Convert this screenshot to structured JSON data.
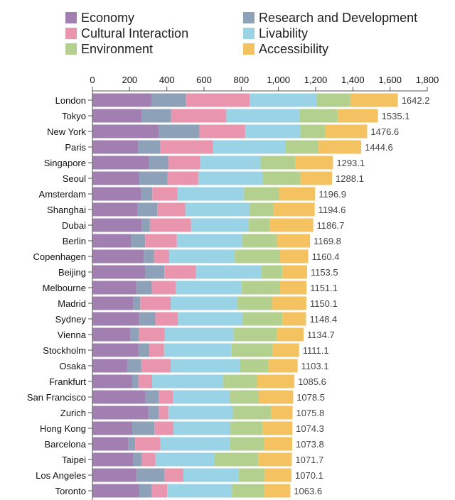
{
  "chart_data": {
    "type": "bar",
    "orientation": "horizontal",
    "stacked": true,
    "title": "",
    "xlabel": "",
    "ylabel": "",
    "xlim": [
      0,
      1800
    ],
    "xticks": [
      0,
      200,
      400,
      600,
      800,
      1000,
      1200,
      1400,
      1600,
      1800
    ],
    "xtick_labels": [
      "0",
      "200",
      "400",
      "600",
      "800",
      "1,000",
      "1,200",
      "1,400",
      "1,600",
      "1,800"
    ],
    "grid": false,
    "legend_position": "top",
    "categories": [
      "London",
      "Tokyo",
      "New York",
      "Paris",
      "Singapore",
      "Seoul",
      "Amsterdam",
      "Shanghai",
      "Dubai",
      "Berlin",
      "Copenhagen",
      "Beijing",
      "Melbourne",
      "Madrid",
      "Sydney",
      "Vienna",
      "Stockholm",
      "Osaka",
      "Frankfurt",
      "San Francisco",
      "Zurich",
      "Hong Kong",
      "Barcelona",
      "Taipei",
      "Los Angeles",
      "Toronto"
    ],
    "totals": [
      1642.2,
      1535.1,
      1476.6,
      1444.6,
      1293.1,
      1288.1,
      1196.9,
      1194.6,
      1186.7,
      1169.8,
      1160.4,
      1153.5,
      1151.1,
      1150.1,
      1148.4,
      1134.7,
      1111.1,
      1103.1,
      1085.6,
      1078.5,
      1075.8,
      1074.3,
      1073.8,
      1071.7,
      1070.1,
      1063.6
    ],
    "total_labels": [
      "1642.2",
      "1535.1",
      "1476.6",
      "1444.6",
      "1293.1",
      "1288.1",
      "1196.9",
      "1194.6",
      "1186.7",
      "1169.8",
      "1160.4",
      "1153.5",
      "1151.1",
      "1150.1",
      "1148.4",
      "1134.7",
      "1111.1",
      "1103.1",
      "1085.6",
      "1078.5",
      "1075.8",
      "1074.3",
      "1073.8",
      "1071.7",
      "1070.1",
      "1063.6"
    ],
    "series": [
      {
        "name": "Economy",
        "color": "#a27fb1",
        "values": [
          317,
          264,
          357,
          246,
          305,
          252,
          262,
          244,
          264,
          208,
          276,
          285,
          238,
          221,
          253,
          205,
          248,
          187,
          212,
          286,
          301,
          214,
          194,
          220,
          238,
          252
        ]
      },
      {
        "name": "Research and Development",
        "color": "#8da1b9",
        "values": [
          186,
          159,
          218,
          117,
          102,
          151,
          60,
          105,
          45,
          76,
          55,
          102,
          82,
          36,
          85,
          45,
          58,
          76,
          35,
          70,
          55,
          119,
          36,
          45,
          148,
          65
        ]
      },
      {
        "name": "Cultural Interaction",
        "color": "#e995ae",
        "values": [
          342,
          297,
          246,
          285,
          173,
          166,
          135,
          150,
          221,
          170,
          82,
          170,
          127,
          164,
          122,
          139,
          79,
          158,
          74,
          77,
          52,
          103,
          136,
          74,
          103,
          85
        ]
      },
      {
        "name": "Livability",
        "color": "#9bd3e6",
        "values": [
          359,
          392,
          297,
          388,
          324,
          346,
          356,
          345,
          308,
          351,
          352,
          353,
          355,
          359,
          346,
          370,
          363,
          370,
          381,
          304,
          349,
          306,
          375,
          316,
          296,
          348
        ]
      },
      {
        "name": "Environment",
        "color": "#b3d08f",
        "values": [
          183,
          206,
          135,
          180,
          188,
          203,
          190,
          129,
          114,
          189,
          244,
          111,
          207,
          185,
          215,
          232,
          221,
          156,
          184,
          158,
          205,
          172,
          182,
          236,
          141,
          175
        ]
      },
      {
        "name": "Accessibility",
        "color": "#f4c261",
        "values": [
          255,
          217,
          224,
          229,
          201,
          170,
          194,
          222,
          235,
          176,
          151,
          133,
          142,
          185,
          127,
          144,
          142,
          156,
          200,
          184,
          114,
          161,
          151,
          181,
          144,
          139
        ]
      }
    ]
  }
}
